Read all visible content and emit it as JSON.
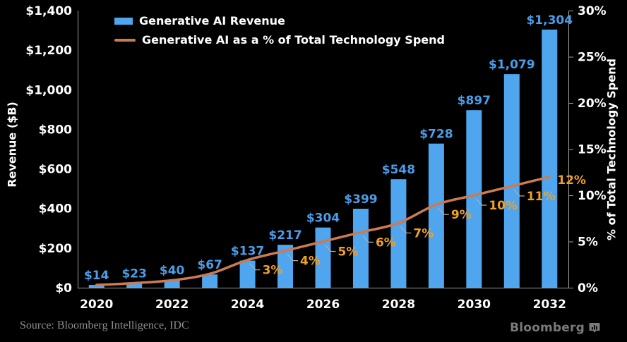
{
  "chart_data": {
    "type": "bar",
    "combo": "bar+line",
    "title": "",
    "categories": [
      "2020",
      "2021",
      "2022",
      "2023",
      "2024",
      "2025",
      "2026",
      "2027",
      "2028",
      "2029",
      "2030",
      "2031",
      "2032"
    ],
    "series": [
      {
        "name": "Generative AI Revenue",
        "type": "bar",
        "axis": "left",
        "values": [
          14,
          23,
          40,
          67,
          137,
          217,
          304,
          399,
          548,
          728,
          897,
          1079,
          1304
        ],
        "data_labels": [
          "$14",
          "$23",
          "$40",
          "$67",
          "$137",
          "$217",
          "$304",
          "$399",
          "$548",
          "$728",
          "$897",
          "$1,079",
          "$1,304"
        ],
        "color": "#4fa5ee",
        "label_color": "#4a9de8"
      },
      {
        "name": "Generative AI as a % of Total Technology Spend",
        "type": "line",
        "axis": "right",
        "values": [
          0.3,
          0.5,
          0.8,
          1.5,
          3,
          4,
          5,
          6,
          7,
          9,
          10,
          11,
          12
        ],
        "data_labels": [
          null,
          null,
          null,
          null,
          "3%",
          "4%",
          "5%",
          "6%",
          "7%",
          "9%",
          "10%",
          "11%",
          "12%"
        ],
        "color": "#cd7a4e",
        "label_color": "#f0a028"
      }
    ],
    "left_axis": {
      "title": "Revenue ($B)",
      "min": 0,
      "max": 1400,
      "tick_step": 200,
      "tick_labels": [
        "$0",
        "$200",
        "$400",
        "$600",
        "$800",
        "$1,000",
        "$1,200",
        "$1,400"
      ]
    },
    "right_axis": {
      "title": "% of Total Technology Spend",
      "min": 0,
      "max": 30,
      "tick_step": 5,
      "tick_labels": [
        "0%",
        "5%",
        "10%",
        "15%",
        "20%",
        "25%",
        "30%"
      ]
    },
    "x_axis": {
      "tick_labels": [
        "2020",
        "2022",
        "2024",
        "2026",
        "2028",
        "2030",
        "2032"
      ]
    },
    "grid": false,
    "legend_position": "top-left",
    "background_color": "#000000",
    "axis_line_color": "#9e9e9e",
    "leader_line_color": "#b0b0b0",
    "tick_text_color": "#ffffff"
  },
  "legend": {
    "items": [
      {
        "label": "Generative AI Revenue",
        "swatch": "bar",
        "color": "#4fa5ee"
      },
      {
        "label": "Generative AI as a % of Total Technology Spend",
        "swatch": "line",
        "color": "#cd7a4e"
      }
    ]
  },
  "footer": {
    "source": "Source: Bloomberg Intelligence, IDC",
    "logo_text": "Bloomberg",
    "logo_icon": "chart-speech-bubble-icon"
  }
}
